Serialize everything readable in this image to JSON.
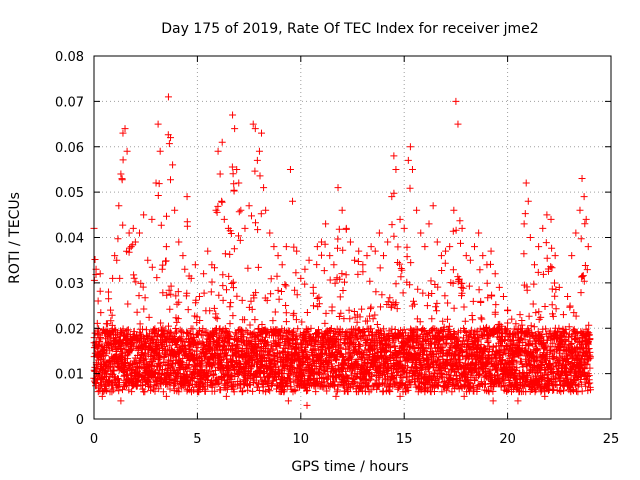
{
  "chart_data": {
    "type": "scatter",
    "title": "Day 175 of 2019, Rate Of TEC Index for receiver jme2",
    "xlabel": "GPS time / hours",
    "ylabel": "ROTI / TECUs",
    "xlim": [
      0,
      25
    ],
    "ylim": [
      0,
      0.08
    ],
    "x_ticks": [
      0,
      5,
      10,
      15,
      20,
      25
    ],
    "x_tick_labels": [
      "0",
      "5",
      "10",
      "15",
      "20",
      "25"
    ],
    "y_ticks": [
      0,
      0.01,
      0.02,
      0.03,
      0.04,
      0.05,
      0.06,
      0.07,
      0.08
    ],
    "y_tick_labels": [
      "0",
      "0.01",
      "0.02",
      "0.03",
      "0.04",
      "0.05",
      "0.06",
      "0.07",
      "0.08"
    ],
    "grid": true,
    "marker": "+",
    "series": [
      {
        "name": "ROTI",
        "color": "#ff0000",
        "points": [
          [
            0.0,
            0.042
          ],
          [
            0.1,
            0.033
          ],
          [
            0.2,
            0.026
          ],
          [
            0.3,
            0.032
          ],
          [
            0.4,
            0.019
          ],
          [
            0.5,
            0.015
          ],
          [
            0.6,
            0.021
          ],
          [
            0.7,
            0.028
          ],
          [
            0.8,
            0.024
          ],
          [
            0.9,
            0.031
          ],
          [
            1.0,
            0.036
          ],
          [
            1.1,
            0.035
          ],
          [
            1.2,
            0.047
          ],
          [
            1.3,
            0.054
          ],
          [
            1.4,
            0.063
          ],
          [
            1.5,
            0.064
          ],
          [
            1.6,
            0.059
          ],
          [
            1.7,
            0.041
          ],
          [
            1.8,
            0.038
          ],
          [
            1.9,
            0.042
          ],
          [
            2.0,
            0.039
          ],
          [
            2.2,
            0.041
          ],
          [
            2.4,
            0.045
          ],
          [
            2.6,
            0.035
          ],
          [
            2.8,
            0.044
          ],
          [
            3.0,
            0.052
          ],
          [
            3.1,
            0.065
          ],
          [
            3.2,
            0.059
          ],
          [
            3.3,
            0.033
          ],
          [
            3.5,
            0.038
          ],
          [
            3.6,
            0.071
          ],
          [
            3.7,
            0.062
          ],
          [
            3.8,
            0.056
          ],
          [
            3.9,
            0.046
          ],
          [
            4.1,
            0.039
          ],
          [
            4.3,
            0.036
          ],
          [
            4.5,
            0.049
          ],
          [
            4.7,
            0.031
          ],
          [
            4.9,
            0.034
          ],
          [
            5.1,
            0.027
          ],
          [
            5.3,
            0.032
          ],
          [
            5.5,
            0.037
          ],
          [
            5.7,
            0.034
          ],
          [
            5.9,
            0.046
          ],
          [
            6.0,
            0.059
          ],
          [
            6.1,
            0.054
          ],
          [
            6.2,
            0.061
          ],
          [
            6.3,
            0.044
          ],
          [
            6.5,
            0.042
          ],
          [
            6.7,
            0.067
          ],
          [
            6.8,
            0.064
          ],
          [
            6.9,
            0.055
          ],
          [
            7.0,
            0.052
          ],
          [
            7.1,
            0.046
          ],
          [
            7.3,
            0.042
          ],
          [
            7.5,
            0.047
          ],
          [
            7.7,
            0.065
          ],
          [
            7.8,
            0.064
          ],
          [
            7.9,
            0.057
          ],
          [
            8.0,
            0.059
          ],
          [
            8.1,
            0.063
          ],
          [
            8.2,
            0.051
          ],
          [
            8.3,
            0.046
          ],
          [
            8.5,
            0.041
          ],
          [
            8.7,
            0.038
          ],
          [
            8.9,
            0.036
          ],
          [
            9.1,
            0.034
          ],
          [
            9.3,
            0.038
          ],
          [
            9.5,
            0.055
          ],
          [
            9.6,
            0.048
          ],
          [
            9.8,
            0.037
          ],
          [
            10.0,
            0.031
          ],
          [
            10.2,
            0.033
          ],
          [
            10.4,
            0.035
          ],
          [
            10.6,
            0.029
          ],
          [
            10.8,
            0.038
          ],
          [
            11.0,
            0.039
          ],
          [
            11.2,
            0.043
          ],
          [
            11.4,
            0.036
          ],
          [
            11.6,
            0.034
          ],
          [
            11.8,
            0.051
          ],
          [
            12.0,
            0.046
          ],
          [
            12.2,
            0.042
          ],
          [
            12.4,
            0.039
          ],
          [
            12.6,
            0.035
          ],
          [
            12.8,
            0.037
          ],
          [
            13.0,
            0.034
          ],
          [
            13.2,
            0.036
          ],
          [
            13.4,
            0.038
          ],
          [
            13.6,
            0.037
          ],
          [
            13.8,
            0.041
          ],
          [
            14.0,
            0.036
          ],
          [
            14.2,
            0.039
          ],
          [
            14.4,
            0.049
          ],
          [
            14.5,
            0.058
          ],
          [
            14.6,
            0.055
          ],
          [
            14.8,
            0.044
          ],
          [
            15.0,
            0.042
          ],
          [
            15.2,
            0.057
          ],
          [
            15.3,
            0.06
          ],
          [
            15.4,
            0.055
          ],
          [
            15.6,
            0.046
          ],
          [
            15.8,
            0.041
          ],
          [
            16.0,
            0.038
          ],
          [
            16.2,
            0.043
          ],
          [
            16.4,
            0.047
          ],
          [
            16.6,
            0.039
          ],
          [
            16.8,
            0.036
          ],
          [
            17.0,
            0.037
          ],
          [
            17.2,
            0.038
          ],
          [
            17.4,
            0.046
          ],
          [
            17.5,
            0.07
          ],
          [
            17.6,
            0.065
          ],
          [
            17.8,
            0.042
          ],
          [
            18.0,
            0.036
          ],
          [
            18.2,
            0.035
          ],
          [
            18.4,
            0.038
          ],
          [
            18.6,
            0.041
          ],
          [
            18.8,
            0.036
          ],
          [
            19.0,
            0.034
          ],
          [
            19.2,
            0.037
          ],
          [
            19.4,
            0.032
          ],
          [
            19.6,
            0.029
          ],
          [
            19.8,
            0.027
          ],
          [
            20.0,
            0.024
          ],
          [
            20.2,
            0.022
          ],
          [
            20.4,
            0.021
          ],
          [
            20.6,
            0.023
          ],
          [
            20.8,
            0.043
          ],
          [
            20.9,
            0.052
          ],
          [
            21.0,
            0.048
          ],
          [
            21.1,
            0.04
          ],
          [
            21.3,
            0.034
          ],
          [
            21.5,
            0.038
          ],
          [
            21.7,
            0.042
          ],
          [
            21.9,
            0.045
          ],
          [
            22.1,
            0.044
          ],
          [
            22.3,
            0.036
          ],
          [
            22.5,
            0.029
          ],
          [
            22.7,
            0.023
          ],
          [
            22.9,
            0.027
          ],
          [
            23.1,
            0.036
          ],
          [
            23.3,
            0.041
          ],
          [
            23.5,
            0.046
          ],
          [
            23.6,
            0.053
          ],
          [
            23.7,
            0.049
          ],
          [
            23.8,
            0.044
          ],
          [
            23.9,
            0.038
          ],
          [
            0.2,
            0.012
          ],
          [
            0.6,
            0.01
          ],
          [
            1.1,
            0.013
          ],
          [
            1.6,
            0.011
          ],
          [
            2.1,
            0.014
          ],
          [
            2.6,
            0.012
          ],
          [
            3.1,
            0.01
          ],
          [
            3.6,
            0.013
          ],
          [
            4.1,
            0.011
          ],
          [
            4.6,
            0.012
          ],
          [
            5.1,
            0.01
          ],
          [
            5.6,
            0.012
          ],
          [
            6.1,
            0.011
          ],
          [
            6.6,
            0.013
          ],
          [
            7.1,
            0.012
          ],
          [
            7.6,
            0.014
          ],
          [
            8.1,
            0.012
          ],
          [
            8.6,
            0.011
          ],
          [
            9.1,
            0.01
          ],
          [
            9.6,
            0.011
          ],
          [
            10.1,
            0.012
          ],
          [
            10.6,
            0.013
          ],
          [
            11.1,
            0.012
          ],
          [
            11.6,
            0.014
          ],
          [
            12.1,
            0.013
          ],
          [
            12.6,
            0.012
          ],
          [
            13.1,
            0.013
          ],
          [
            13.6,
            0.014
          ],
          [
            14.1,
            0.013
          ],
          [
            14.6,
            0.012
          ],
          [
            15.1,
            0.013
          ],
          [
            15.6,
            0.014
          ],
          [
            16.1,
            0.012
          ],
          [
            16.6,
            0.013
          ],
          [
            17.1,
            0.012
          ],
          [
            17.6,
            0.013
          ],
          [
            18.1,
            0.012
          ],
          [
            18.6,
            0.011
          ],
          [
            19.1,
            0.01
          ],
          [
            19.6,
            0.009
          ],
          [
            20.1,
            0.008
          ],
          [
            20.6,
            0.009
          ],
          [
            21.1,
            0.011
          ],
          [
            21.6,
            0.012
          ],
          [
            22.1,
            0.011
          ],
          [
            22.6,
            0.01
          ],
          [
            23.1,
            0.011
          ],
          [
            23.6,
            0.012
          ],
          [
            23.9,
            0.01
          ],
          [
            0.4,
            0.005
          ],
          [
            1.3,
            0.004
          ],
          [
            2.4,
            0.006
          ],
          [
            3.5,
            0.005
          ],
          [
            5.0,
            0.006
          ],
          [
            6.4,
            0.005
          ],
          [
            8.3,
            0.006
          ],
          [
            9.4,
            0.004
          ],
          [
            10.3,
            0.003
          ],
          [
            11.7,
            0.005
          ],
          [
            13.3,
            0.006
          ],
          [
            14.8,
            0.005
          ],
          [
            16.3,
            0.006
          ],
          [
            17.9,
            0.005
          ],
          [
            19.3,
            0.004
          ],
          [
            20.5,
            0.004
          ],
          [
            21.8,
            0.005
          ],
          [
            23.4,
            0.006
          ]
        ]
      }
    ]
  }
}
